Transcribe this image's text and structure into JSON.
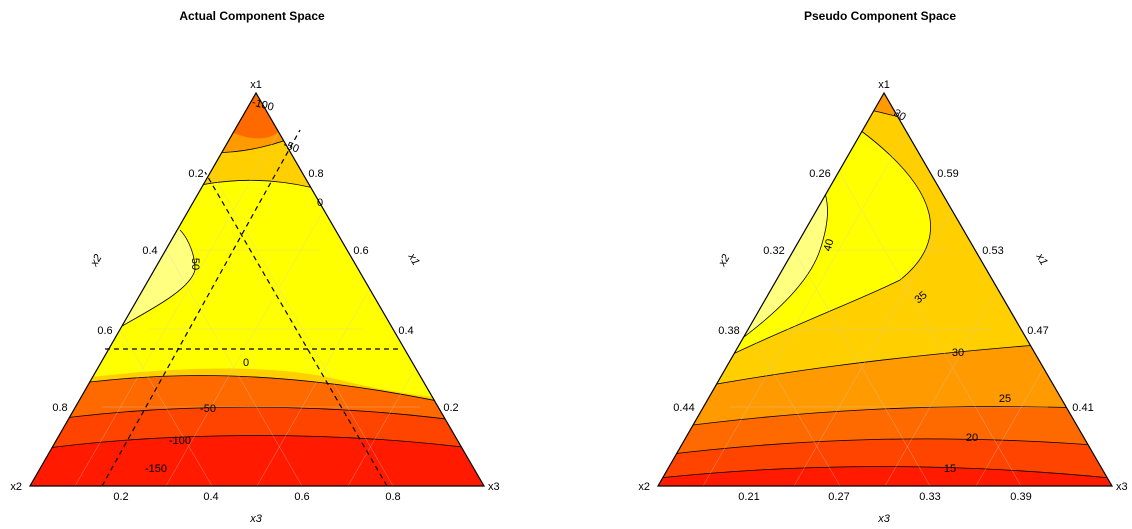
{
  "chart_data": [
    {
      "type": "ternary-contour",
      "title": "Actual Component Space",
      "vertex_labels": {
        "top": "x1",
        "left": "x2",
        "right": "x3"
      },
      "edge_labels": {
        "left": "x2",
        "right": "x1",
        "bottom": "x3"
      },
      "ticks": {
        "left": [
          "0.2",
          "0.4",
          "0.6",
          "0.8"
        ],
        "right": [
          "0.8",
          "0.6",
          "0.4",
          "0.2"
        ],
        "bottom": [
          "0.2",
          "0.4",
          "0.6",
          "0.8"
        ]
      },
      "contour_labels": [
        "-100",
        "-50",
        "0",
        "50",
        "0",
        "-50",
        "-100",
        "-150"
      ],
      "constraint_lines": {
        "style": "dashed"
      },
      "colors": [
        "#ff1a00",
        "#ff4400",
        "#ff6a00",
        "#ff9a00",
        "#ffcf00",
        "#ffff00",
        "#ffff80"
      ]
    },
    {
      "type": "ternary-contour",
      "title": "Pseudo Component Space",
      "vertex_labels": {
        "top": "x1",
        "left": "x2",
        "right": "x3"
      },
      "edge_labels": {
        "left": "x2",
        "right": "x1",
        "bottom": "x3"
      },
      "ticks": {
        "left": [
          "0.26",
          "0.32",
          "0.38",
          "0.44"
        ],
        "right": [
          "0.59",
          "0.53",
          "0.47",
          "0.41"
        ],
        "bottom": [
          "0.21",
          "0.27",
          "0.33",
          "0.39"
        ]
      },
      "contour_labels": [
        "30",
        "40",
        "35",
        "30",
        "25",
        "20",
        "15"
      ],
      "colors": [
        "#ff1a00",
        "#ff4400",
        "#ff6a00",
        "#ff9a00",
        "#ffcf00",
        "#ffff00",
        "#ffff80"
      ]
    }
  ]
}
